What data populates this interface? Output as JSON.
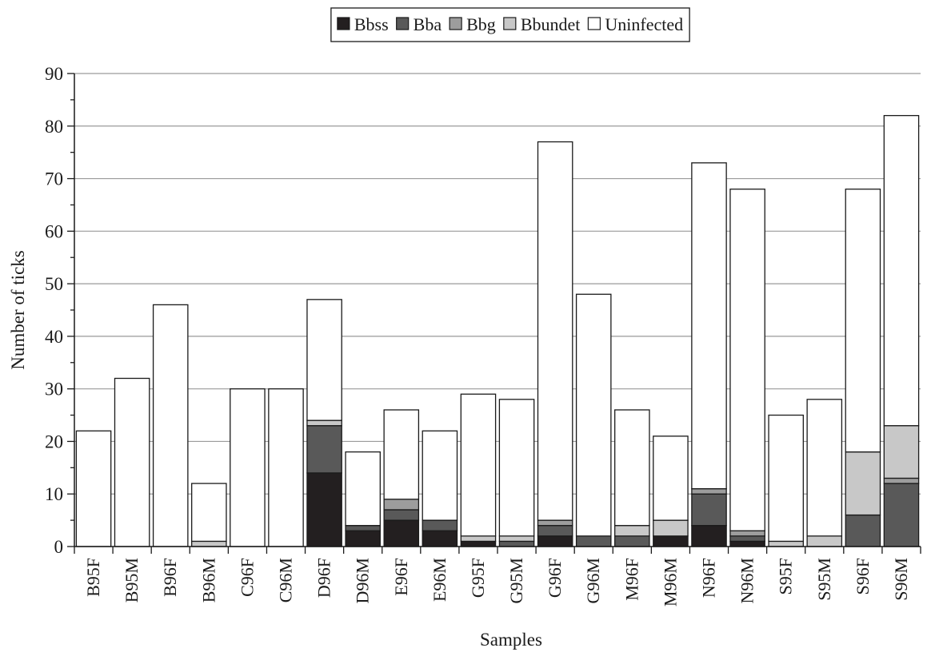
{
  "chart_data": {
    "type": "bar",
    "stacked": true,
    "xlabel": "Samples",
    "ylabel": "Number of ticks",
    "ylim": [
      0,
      90
    ],
    "yticks": [
      0,
      10,
      20,
      30,
      40,
      50,
      60,
      70,
      80,
      90
    ],
    "grid": true,
    "legend_position": "top-center",
    "categories": [
      "B95F",
      "B95M",
      "B96F",
      "B96M",
      "C96F",
      "C96M",
      "D96F",
      "D96M",
      "E96F",
      "E96M",
      "G95F",
      "G95M",
      "G96F",
      "G96M",
      "M96F",
      "M96M",
      "N96F",
      "N96M",
      "S95F",
      "S95M",
      "S96F",
      "S96M"
    ],
    "series": [
      {
        "name": "Bbss",
        "color": "#231f20",
        "values": [
          0,
          0,
          0,
          0,
          0,
          0,
          14,
          3,
          5,
          3,
          1,
          0,
          2,
          0,
          0,
          2,
          4,
          1,
          0,
          0,
          0,
          0
        ]
      },
      {
        "name": "Bba",
        "color": "#595959",
        "values": [
          0,
          0,
          0,
          0,
          0,
          0,
          9,
          1,
          2,
          2,
          0,
          1,
          2,
          2,
          2,
          0,
          6,
          1,
          0,
          0,
          6,
          12
        ]
      },
      {
        "name": "Bbg",
        "color": "#9d9d9d",
        "values": [
          0,
          0,
          0,
          0,
          0,
          0,
          0,
          0,
          2,
          0,
          0,
          0,
          1,
          0,
          0,
          0,
          1,
          1,
          0,
          0,
          0,
          1
        ]
      },
      {
        "name": "Bbundet",
        "color": "#c8c8c8",
        "values": [
          0,
          0,
          0,
          1,
          0,
          0,
          1,
          0,
          0,
          0,
          1,
          1,
          0,
          0,
          2,
          3,
          0,
          0,
          1,
          2,
          12,
          10
        ]
      },
      {
        "name": "Uninfected",
        "color": "#ffffff",
        "values": [
          22,
          32,
          46,
          11,
          30,
          30,
          23,
          14,
          17,
          17,
          27,
          26,
          72,
          46,
          22,
          16,
          62,
          65,
          24,
          26,
          50,
          59
        ]
      }
    ]
  }
}
